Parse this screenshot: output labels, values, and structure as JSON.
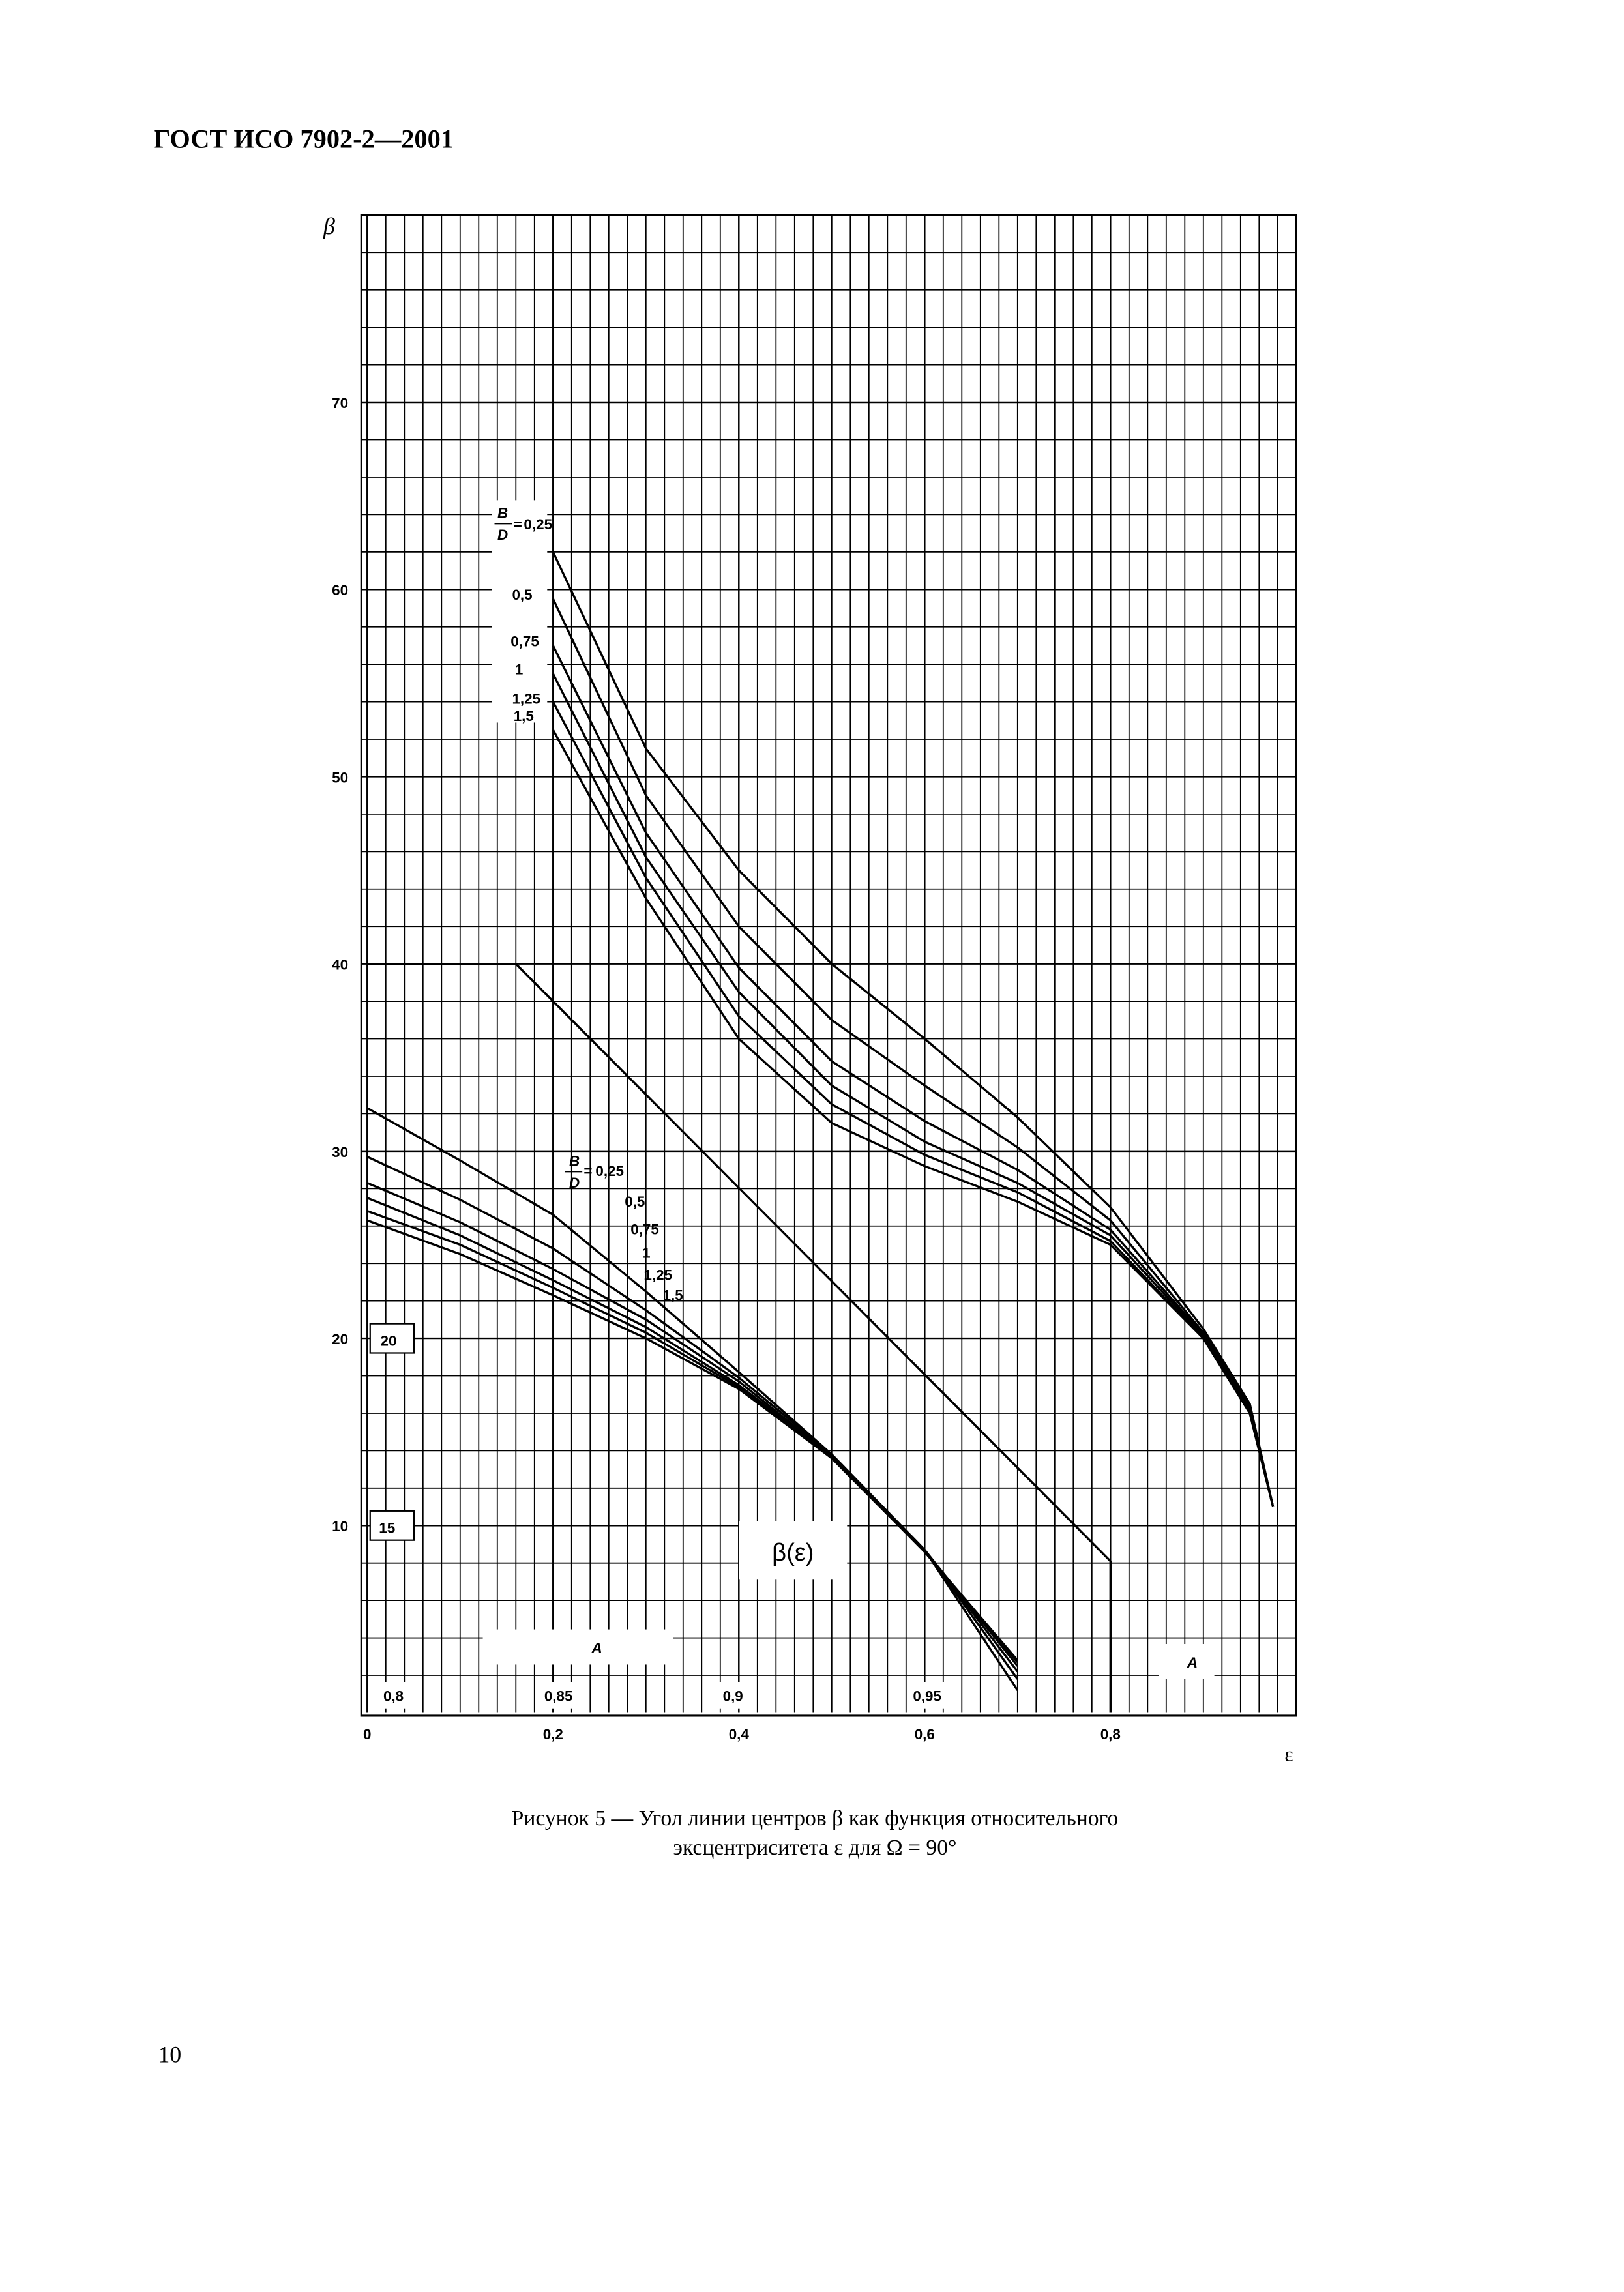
{
  "header": "ГОСТ ИСО 7902-2—2001",
  "chart_data": {
    "type": "line",
    "y_label": "β",
    "x_label": "ε",
    "xlim": [
      0,
      1
    ],
    "ylim": [
      0,
      80
    ],
    "xticks": [
      0,
      {
        "value": 0.2,
        "label": "0,2"
      },
      {
        "value": 0.4,
        "label": "0,4"
      },
      {
        "value": 0.6,
        "label": "0,6"
      },
      {
        "value": 0.8,
        "label": "0,8"
      }
    ],
    "yticks": [
      10,
      20,
      30,
      40,
      50,
      60,
      70
    ],
    "grid": true,
    "ratio_label": {
      "numerator": "B",
      "denominator": "D"
    },
    "series": [
      {
        "name": "0,25",
        "color": "#000000",
        "x": [
          0.2,
          0.3,
          0.4,
          0.5,
          0.6,
          0.7,
          0.8,
          0.9,
          0.95,
          0.975
        ],
        "values": [
          62,
          51.5,
          45,
          40,
          36,
          31.8,
          27,
          20.5,
          16.5,
          11
        ]
      },
      {
        "name": "0,5",
        "color": "#000000",
        "x": [
          0.2,
          0.3,
          0.4,
          0.5,
          0.6,
          0.7,
          0.8,
          0.9,
          0.95,
          0.975
        ],
        "values": [
          59.5,
          49,
          42,
          37,
          33.5,
          30.2,
          26.3,
          20.3,
          16.3,
          11
        ]
      },
      {
        "name": "0,75",
        "color": "#000000",
        "x": [
          0.2,
          0.3,
          0.4,
          0.5,
          0.6,
          0.7,
          0.8,
          0.9,
          0.95,
          0.975
        ],
        "values": [
          57,
          47,
          39.8,
          34.8,
          31.6,
          29,
          25.8,
          20.2,
          16.2,
          11
        ]
      },
      {
        "name": "1",
        "color": "#000000",
        "x": [
          0.2,
          0.3,
          0.4,
          0.5,
          0.6,
          0.7,
          0.8,
          0.9,
          0.95,
          0.975
        ],
        "values": [
          55.5,
          45.7,
          38.5,
          33.5,
          30.5,
          28.3,
          25.5,
          20.1,
          16.1,
          11
        ]
      },
      {
        "name": "1,25",
        "color": "#000000",
        "x": [
          0.2,
          0.3,
          0.4,
          0.5,
          0.6,
          0.7,
          0.8,
          0.9,
          0.95,
          0.975
        ],
        "values": [
          54,
          44.6,
          37.2,
          32.5,
          29.8,
          27.8,
          25.2,
          20,
          16,
          11
        ]
      },
      {
        "name": "1,5",
        "color": "#000000",
        "x": [
          0.2,
          0.3,
          0.4,
          0.5,
          0.6,
          0.7,
          0.8,
          0.9,
          0.95,
          0.975
        ],
        "values": [
          52.5,
          43.5,
          36,
          31.5,
          29.2,
          27.3,
          25,
          20,
          16,
          11
        ]
      },
      {
        "name": "0,25",
        "color": "#000000",
        "x": [
          0,
          0.1,
          0.2,
          0.3,
          0.4,
          0.5,
          0.6,
          0.7
        ],
        "values": [
          32.3,
          29.5,
          26.6,
          22.5,
          18.2,
          13.8,
          8.7,
          1.2
        ]
      },
      {
        "name": "0,5",
        "color": "#000000",
        "x": [
          0,
          0.1,
          0.2,
          0.3,
          0.4,
          0.5,
          0.6,
          0.7
        ],
        "values": [
          29.7,
          27.4,
          24.8,
          21.5,
          17.9,
          13.8,
          8.7,
          1.8
        ]
      },
      {
        "name": "0,75",
        "color": "#000000",
        "x": [
          0,
          0.1,
          0.2,
          0.3,
          0.4,
          0.5,
          0.6,
          0.7
        ],
        "values": [
          28.3,
          26.2,
          23.7,
          21,
          17.7,
          13.7,
          8.7,
          2.2
        ]
      },
      {
        "name": "1",
        "color": "#000000",
        "x": [
          0,
          0.1,
          0.2,
          0.3,
          0.4,
          0.5,
          0.6,
          0.7
        ],
        "values": [
          27.5,
          25.5,
          23.1,
          20.6,
          17.5,
          13.7,
          8.7,
          2.5
        ]
      },
      {
        "name": "1,25",
        "color": "#000000",
        "x": [
          0,
          0.1,
          0.2,
          0.3,
          0.4,
          0.5,
          0.6,
          0.7
        ],
        "values": [
          26.8,
          25,
          22.7,
          20.3,
          17.4,
          13.6,
          8.6,
          2.7
        ]
      },
      {
        "name": "1,5",
        "color": "#000000",
        "x": [
          0,
          0.1,
          0.2,
          0.3,
          0.4,
          0.5,
          0.6,
          0.7
        ],
        "values": [
          26.3,
          24.5,
          22.3,
          20,
          17.3,
          13.6,
          8.6,
          2.8
        ]
      },
      {
        "name": "A",
        "color": "#000000",
        "x": [
          0,
          0.16,
          0.8,
          0.8
        ],
        "values": [
          40,
          40,
          8.1,
          0
        ]
      }
    ],
    "function_label": "β(ε)",
    "side_labels": [
      "20",
      "15"
    ],
    "scale_labels": [
      "0,8",
      "0,85",
      "0,9",
      "0,95"
    ]
  },
  "caption": [
    "Рисунок 5 — Угол линии центров β как функция относительного",
    "эксцентриситета ε для Ω = 90°"
  ],
  "page_number": "10"
}
